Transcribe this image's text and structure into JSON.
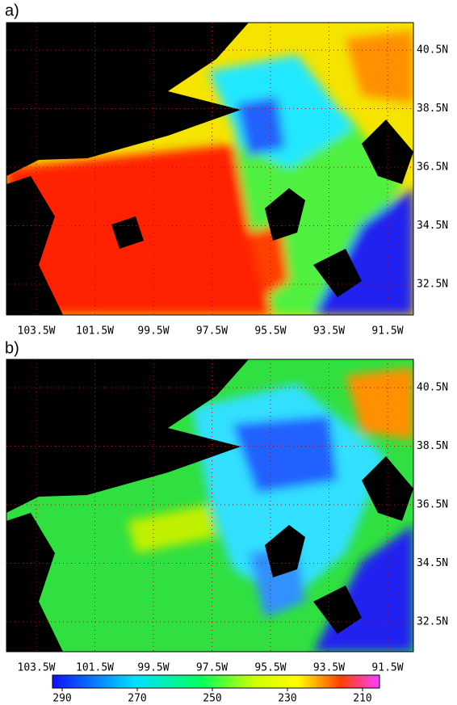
{
  "panels": [
    {
      "label": "a)",
      "xticks": [
        "103.5W",
        "101.5W",
        "99.5W",
        "97.5W",
        "95.5W",
        "93.5W",
        "91.5W"
      ],
      "yticks": [
        "40.5N",
        "38.5N",
        "36.5N",
        "34.5N",
        "32.5N"
      ]
    },
    {
      "label": "b)",
      "xticks": [
        "103.5W",
        "101.5W",
        "99.5W",
        "97.5W",
        "95.5W",
        "93.5W",
        "91.5W"
      ],
      "yticks": [
        "40.5N",
        "38.5N",
        "36.5N",
        "34.5N",
        "32.5N"
      ]
    }
  ],
  "colorbar": {
    "ticks": [
      290,
      270,
      250,
      230,
      210
    ]
  }
}
